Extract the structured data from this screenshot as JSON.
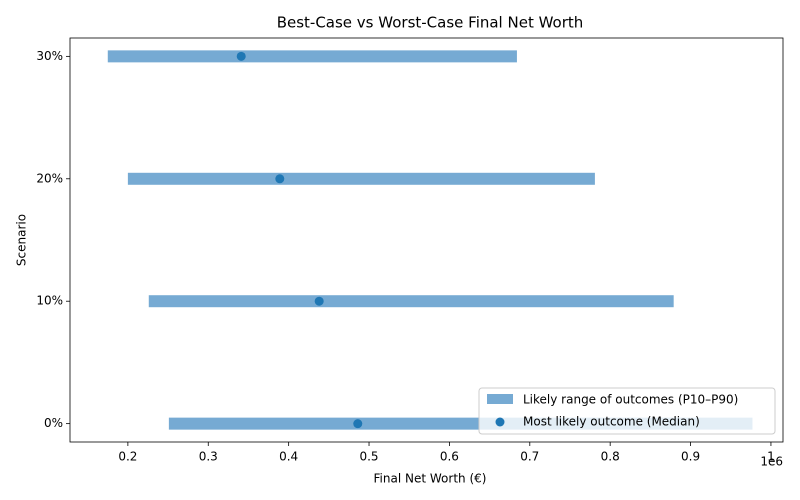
{
  "chart_data": {
    "type": "range",
    "title": "Best-Case vs Worst-Case Final Net Worth",
    "x_label": "Final Net Worth (€)",
    "y_label": "Scenario",
    "x_offset_label": "1e6",
    "categories": [
      "0%",
      "10%",
      "20%",
      "30%"
    ],
    "series": [
      {
        "name": "Likely range of outcomes (P10–P90)",
        "color": "#76aad3",
        "low": [
          0.251,
          0.226,
          0.2,
          0.175
        ],
        "high": [
          0.977,
          0.879,
          0.781,
          0.684
        ]
      },
      {
        "name": "Most likely outcome (Median)",
        "color": "#1f77b4",
        "values": [
          0.486,
          0.438,
          0.389,
          0.341
        ]
      }
    ],
    "xlim": [
      0.128,
      1.015
    ],
    "xticks": [
      0.2,
      0.3,
      0.4,
      0.5,
      0.6,
      0.7,
      0.8,
      0.9,
      1.0
    ],
    "legend": "lower right"
  }
}
